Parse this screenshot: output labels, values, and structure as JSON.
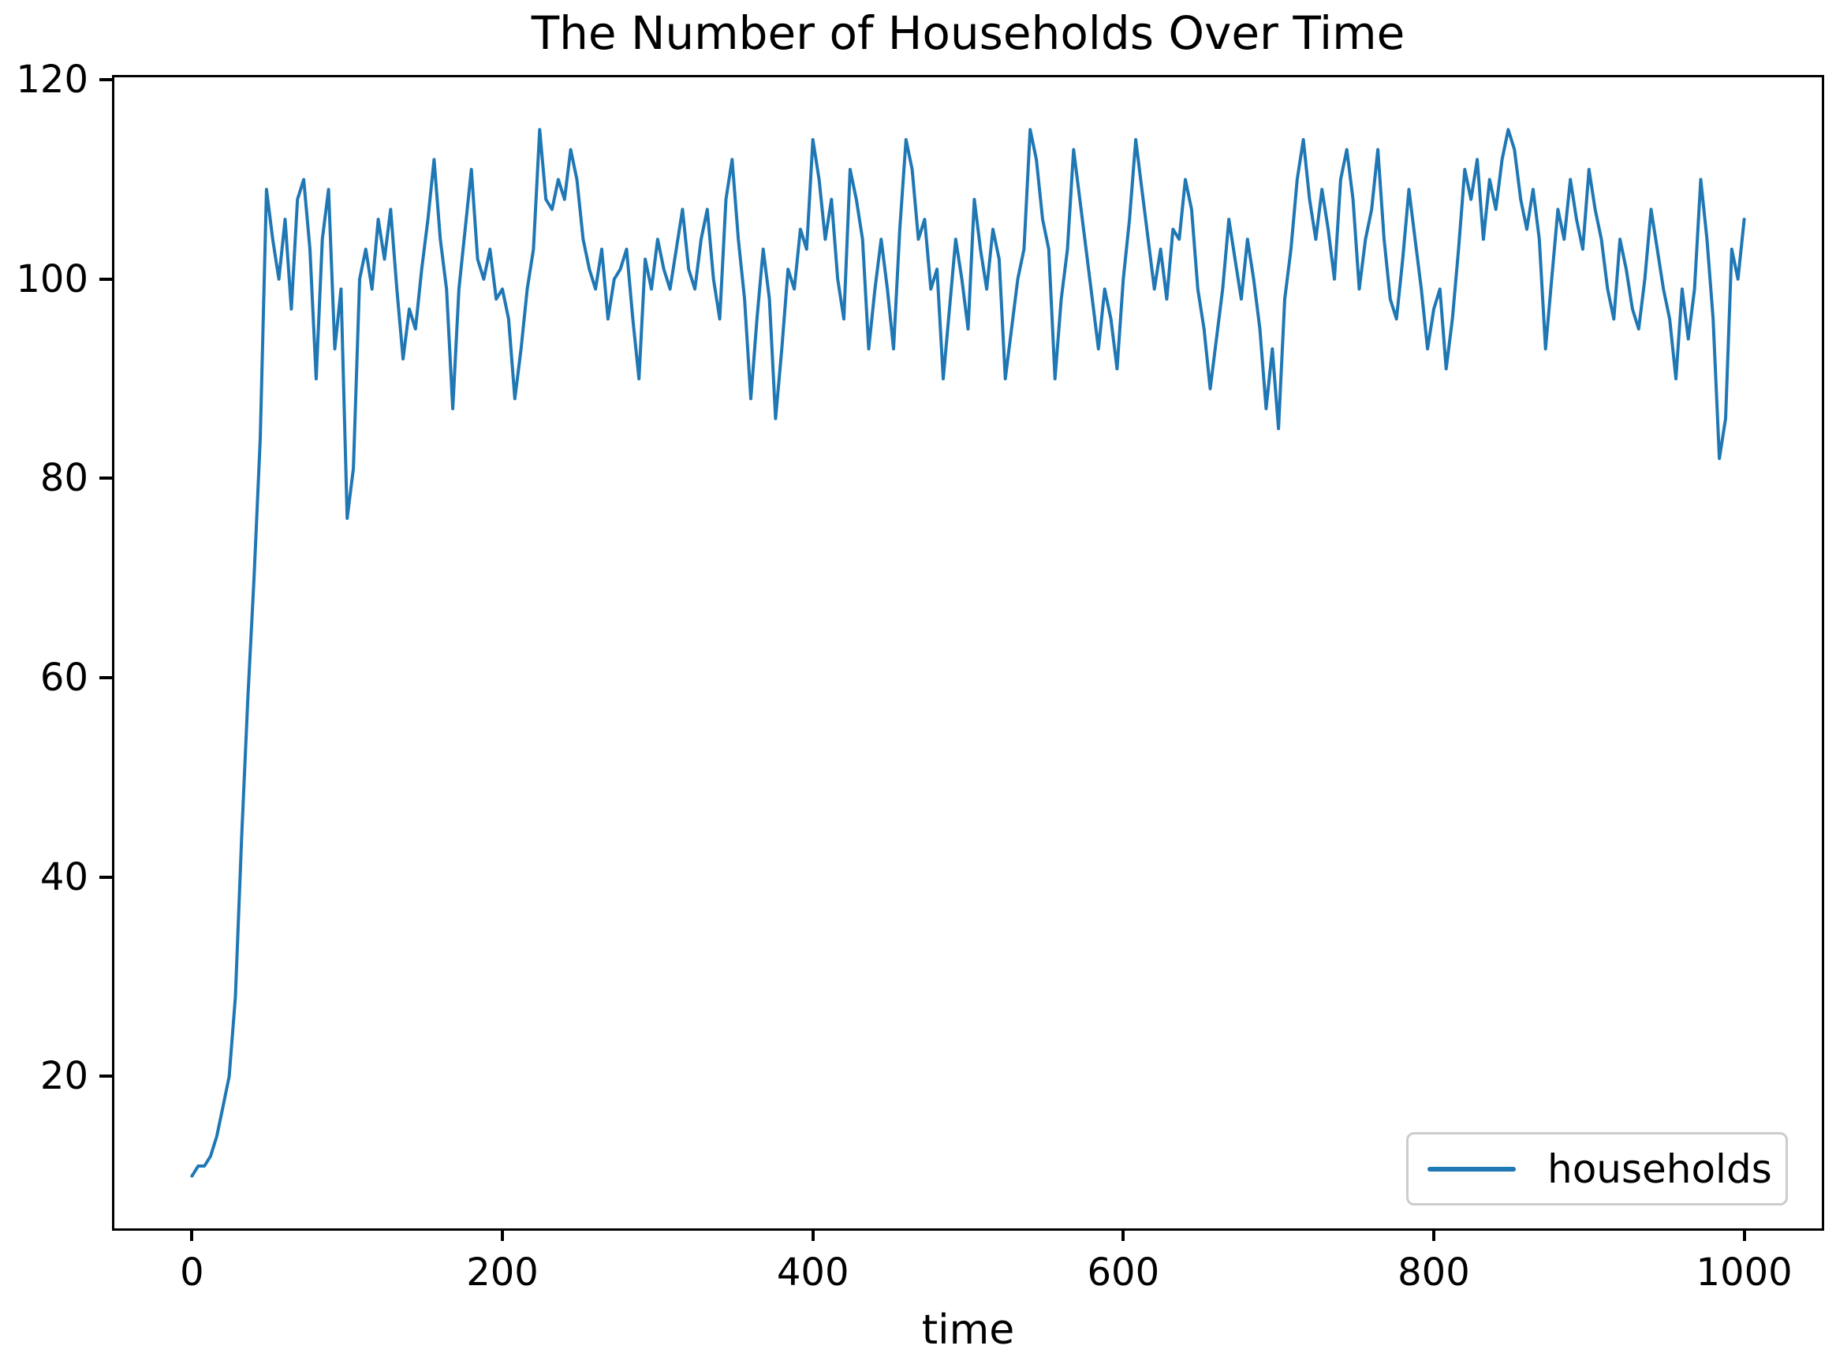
{
  "figure": {
    "background": "#ffffff"
  },
  "chart_data": {
    "type": "line",
    "title": "The Number of Households Over Time",
    "xlabel": "time",
    "ylabel": "",
    "x_ticks": [
      0,
      200,
      400,
      600,
      800,
      1000
    ],
    "y_ticks": [
      20,
      40,
      60,
      80,
      100,
      120
    ],
    "xlim": [
      -50,
      1050
    ],
    "ylim": [
      4.75,
      120.25
    ],
    "grid": false,
    "axis_color": "#000000",
    "legend": {
      "position": "lower right",
      "border_color": "#cccccc",
      "entries": [
        {
          "label": "households",
          "color": "#1f77b4"
        }
      ]
    },
    "series": [
      {
        "name": "households",
        "color": "#1f77b4",
        "line_width": 4,
        "x_start": 0,
        "x_step": 4,
        "values": [
          10,
          11,
          11,
          12,
          14,
          17,
          20,
          28,
          44,
          58,
          70,
          84,
          109,
          104,
          100,
          106,
          97,
          108,
          110,
          103,
          90,
          104,
          109,
          93,
          99,
          76,
          81,
          100,
          103,
          99,
          106,
          102,
          107,
          99,
          92,
          97,
          95,
          101,
          106,
          112,
          104,
          99,
          87,
          99,
          105,
          111,
          102,
          100,
          103,
          98,
          99,
          96,
          88,
          93,
          99,
          103,
          115,
          108,
          107,
          110,
          108,
          113,
          110,
          104,
          101,
          99,
          103,
          96,
          100,
          101,
          103,
          96,
          90,
          102,
          99,
          104,
          101,
          99,
          103,
          107,
          101,
          99,
          104,
          107,
          100,
          96,
          108,
          112,
          104,
          98,
          88,
          96,
          103,
          98,
          86,
          93,
          101,
          99,
          105,
          103,
          114,
          110,
          104,
          108,
          100,
          96,
          111,
          108,
          104,
          93,
          99,
          104,
          99,
          93,
          105,
          114,
          111,
          104,
          106,
          99,
          101,
          90,
          97,
          104,
          100,
          95,
          108,
          103,
          99,
          105,
          102,
          90,
          95,
          100,
          103,
          115,
          112,
          106,
          103,
          90,
          98,
          103,
          113,
          108,
          103,
          98,
          93,
          99,
          96,
          91,
          100,
          106,
          114,
          109,
          104,
          99,
          103,
          98,
          105,
          104,
          110,
          107,
          99,
          95,
          89,
          94,
          99,
          106,
          102,
          98,
          104,
          100,
          95,
          87,
          93,
          85,
          98,
          103,
          110,
          114,
          108,
          104,
          109,
          105,
          100,
          110,
          113,
          108,
          99,
          104,
          107,
          113,
          104,
          98,
          96,
          102,
          109,
          104,
          99,
          93,
          97,
          99,
          91,
          96,
          103,
          111,
          108,
          112,
          104,
          110,
          107,
          112,
          115,
          113,
          108,
          105,
          109,
          104,
          93,
          100,
          107,
          104,
          110,
          106,
          103,
          111,
          107,
          104,
          99,
          96,
          104,
          101,
          97,
          95,
          100,
          107,
          103,
          99,
          96,
          90,
          99,
          94,
          99,
          110,
          104,
          96,
          82,
          86,
          103,
          100,
          106
        ]
      }
    ]
  }
}
